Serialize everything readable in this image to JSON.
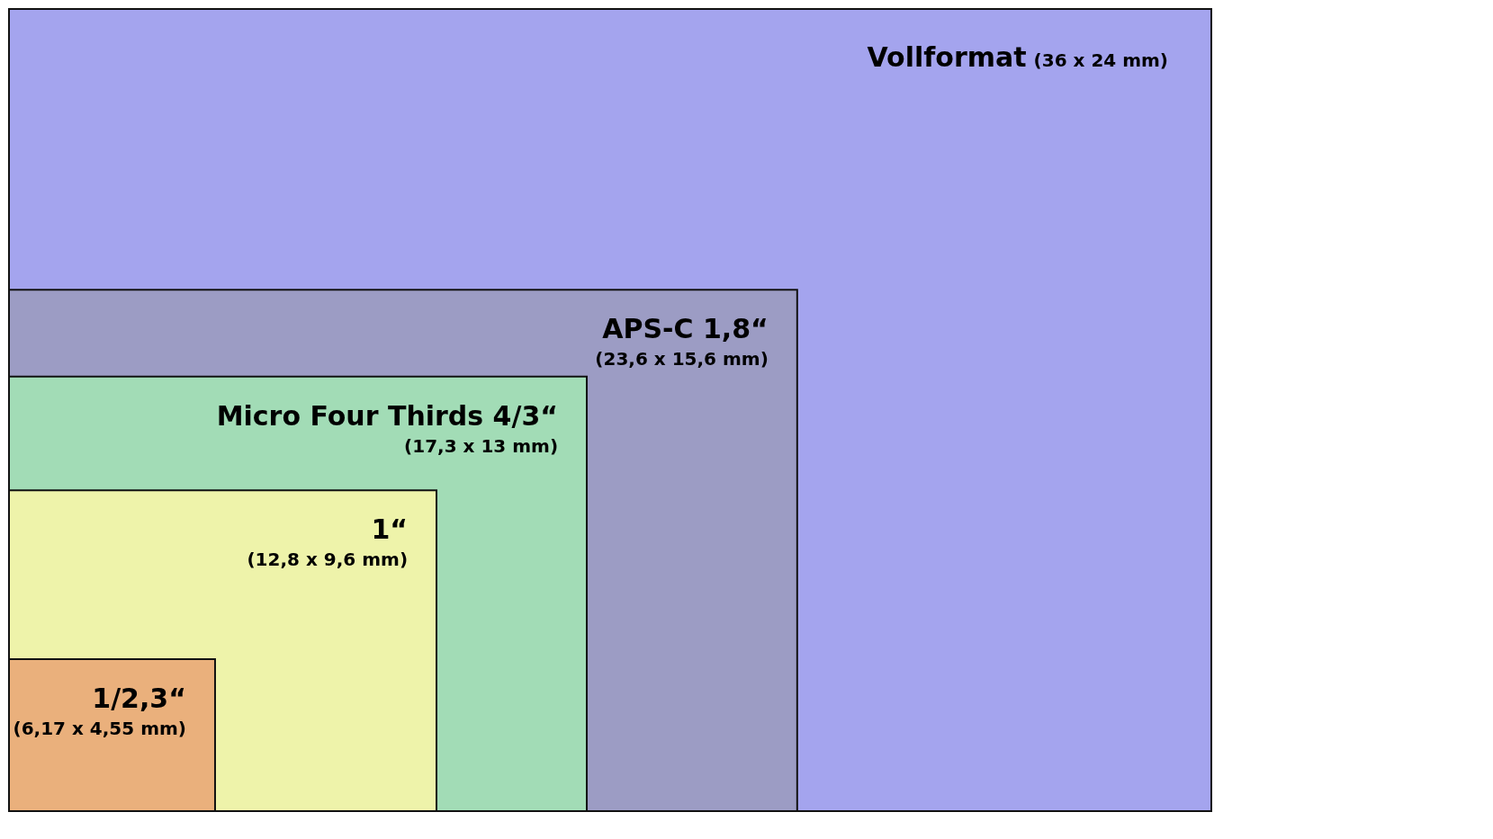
{
  "chart_data": {
    "type": "other",
    "categories": [
      "Vollformat",
      "APS-C 1,8“",
      "Micro Four Thirds 4/3“",
      "1“",
      "1/2,3“"
    ],
    "series": [
      {
        "values": [
          36,
          23.6,
          17.3,
          12.8,
          6.17
        ],
        "value_labels": [
          "(36",
          "(23,6",
          "(17,3",
          "(12,8",
          "(6,17"
        ],
        "colors": [
          "#a4a4ee",
          "#9c9cc4",
          "#a2dcb6",
          "#eef3aa",
          "#eab07c"
        ]
      },
      {
        "values": [
          24,
          15.6,
          13,
          9.6,
          4.55
        ],
        "value_labels": [
          "x 24 mm)",
          "x 15,6 mm)",
          "x 13 mm)",
          "x 9,6 mm)",
          "x 4,55 mm)"
        ]
      }
    ]
  }
}
